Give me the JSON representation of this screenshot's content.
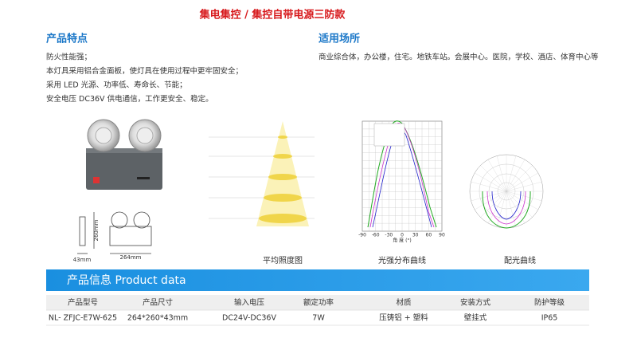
{
  "title": "集电集控 / 集控自带电源三防款",
  "features": {
    "heading": "产品特点",
    "items": [
      "防火性能强；",
      "本灯具采用铝合金面板，使灯具在使用过程中更牢固安全；",
      "采用 LED 光源、功率低、寿命长、节能；",
      "安全电压 DC36V 供电通信，工作更安全、稳定。"
    ]
  },
  "applications": {
    "heading": "适用场所",
    "text": "商业综合体，办公楼，住宅。地铁车站。会展中心。医院，学校、酒店、体育中心等"
  },
  "dimensions": {
    "height": "260mm",
    "depth": "43mm",
    "width": "264mm"
  },
  "intensity_axis": {
    "ticks": [
      "-90",
      "-60",
      "-30",
      "0",
      "30",
      "60",
      "90"
    ],
    "label": "角 度 (°)"
  },
  "captions": [
    "平均照度图",
    "光强分布曲线",
    "配光曲线"
  ],
  "banner": "产品信息 Product data",
  "table": {
    "header": [
      "产品型号",
      "产品尺寸",
      "输入电压",
      "额定功率",
      "材质",
      "安装方式",
      "防护等级"
    ],
    "rows": [
      [
        "NL- ZFJC-E7W-625",
        "264*260*43mm",
        "DC24V-DC36V",
        "7W",
        "压铸铝 + 塑料",
        "壁挂式",
        "IP65"
      ]
    ]
  }
}
